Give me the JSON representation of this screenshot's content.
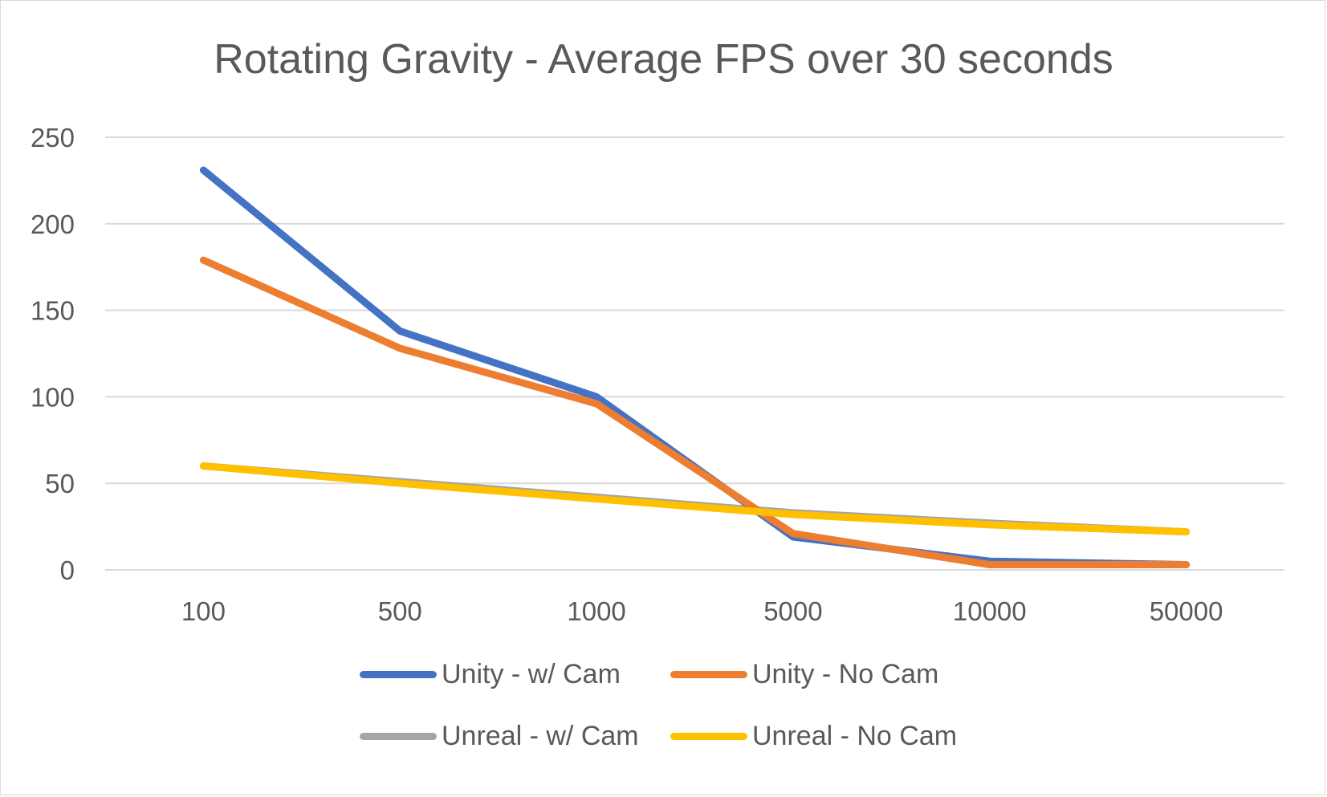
{
  "chart_data": {
    "type": "line",
    "title": "Rotating Gravity - Average FPS over 30 seconds",
    "xlabel": "",
    "ylabel": "",
    "categories": [
      "100",
      "500",
      "1000",
      "5000",
      "10000",
      "50000"
    ],
    "ylim": [
      0,
      250
    ],
    "yticks": [
      0,
      50,
      100,
      150,
      200,
      250
    ],
    "grid": true,
    "legend_position": "bottom",
    "series": [
      {
        "name": "Unreal - w/ Cam",
        "color": "#a5a5a5",
        "values": [
          60,
          51,
          42,
          33,
          27,
          22
        ]
      },
      {
        "name": "Unity - w/ Cam",
        "color": "#4472c4",
        "values": [
          231,
          138,
          100,
          19,
          5,
          3
        ]
      },
      {
        "name": "Unity - No Cam",
        "color": "#ed7d31",
        "values": [
          179,
          128,
          96,
          21,
          3,
          3
        ]
      },
      {
        "name": "Unreal - No Cam",
        "color": "#ffc000",
        "values": [
          60,
          50,
          41,
          32,
          26,
          22
        ]
      }
    ],
    "legend_order": [
      "Unity - w/ Cam",
      "Unity - No Cam",
      "Unreal - w/ Cam",
      "Unreal - No Cam"
    ]
  }
}
